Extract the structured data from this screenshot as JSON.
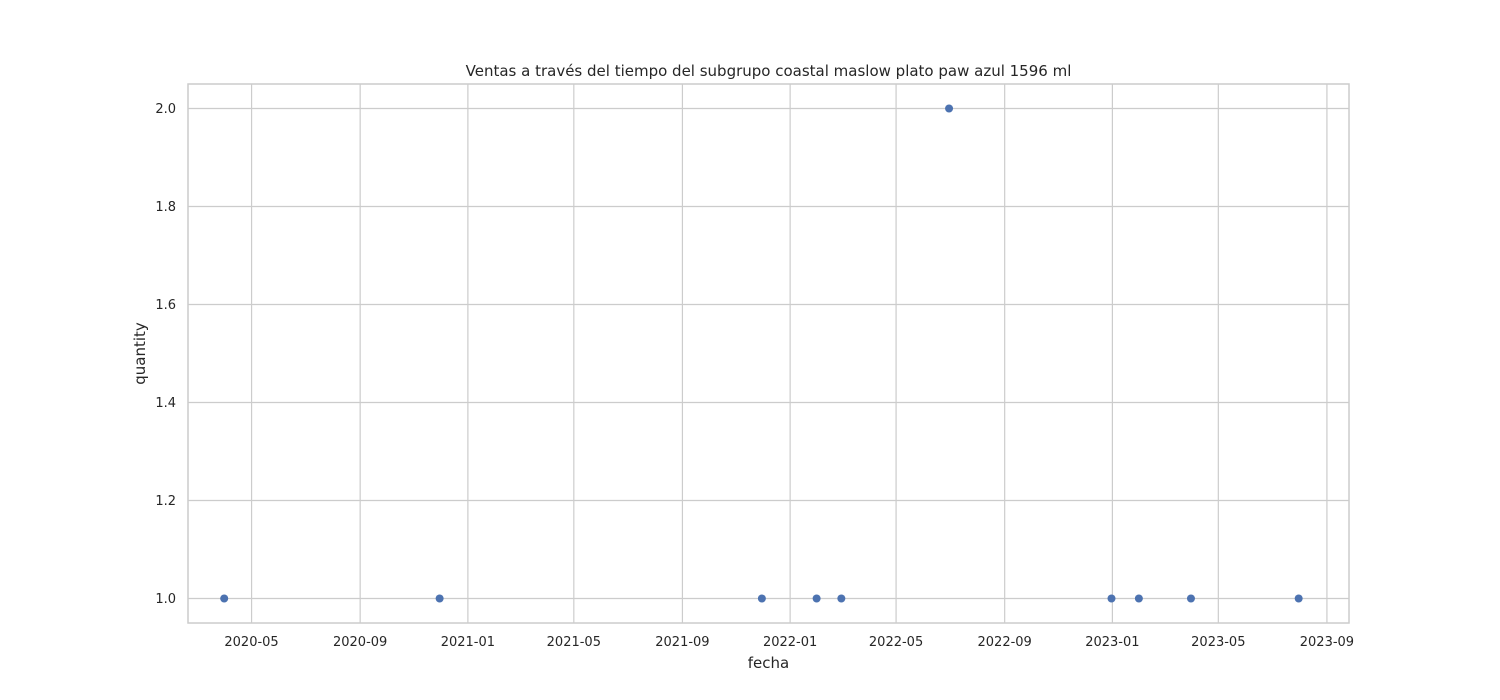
{
  "chart_data": {
    "type": "scatter",
    "title": "Ventas a través del tiempo del subgrupo coastal maslow  plato paw azul 1596 ml",
    "xlabel": "fecha",
    "ylabel": "quantity",
    "x_axis_type": "date",
    "xlim": [
      "2020-02-19",
      "2023-09-26"
    ],
    "ylim": [
      0.95,
      2.05
    ],
    "x_ticks": [
      "2020-05",
      "2020-09",
      "2021-01",
      "2021-05",
      "2021-09",
      "2022-01",
      "2022-05",
      "2022-09",
      "2023-01",
      "2023-05",
      "2023-09"
    ],
    "y_ticks": [
      "1.0",
      "1.2",
      "1.4",
      "1.6",
      "1.8",
      "2.0"
    ],
    "grid": true,
    "marker_color": "#4c72b0",
    "points": [
      {
        "x": "2020-03-31",
        "y": 1
      },
      {
        "x": "2020-11-30",
        "y": 1
      },
      {
        "x": "2021-11-30",
        "y": 1
      },
      {
        "x": "2022-01-31",
        "y": 1
      },
      {
        "x": "2022-02-28",
        "y": 1
      },
      {
        "x": "2022-06-30",
        "y": 2
      },
      {
        "x": "2022-12-31",
        "y": 1
      },
      {
        "x": "2023-01-31",
        "y": 1
      },
      {
        "x": "2023-03-31",
        "y": 1
      },
      {
        "x": "2023-07-31",
        "y": 1
      }
    ]
  }
}
